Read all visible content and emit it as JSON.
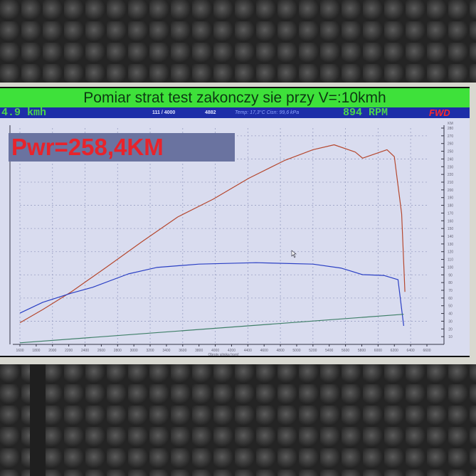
{
  "header": {
    "title": "Pomiar strat test zakonczy sie przy V=:10kmh",
    "speed": "4.9 kmh",
    "counter": "111 / 4000",
    "value": "4882",
    "conditions": "Temp: 17,3°C Cisn: 99,6 kPa",
    "rpm": "894 RPM",
    "drive": "FWD"
  },
  "result_label": "Pwr=258,4KM",
  "colors": {
    "title_bar": "#3ee13a",
    "status_bar": "#1d2ea8",
    "power": "#b5482f",
    "torque": "#2a3fc4",
    "loss": "#3f7f68",
    "result_text": "#e8232b"
  },
  "chart_data": {
    "type": "line",
    "xlabel": "Obroty silnika [rpm]",
    "right_axis_unit": "KM",
    "xlim": [
      1600,
      6600
    ],
    "x_ticks": [
      1600,
      1800,
      2000,
      2200,
      2400,
      2600,
      2800,
      3000,
      3200,
      3400,
      3600,
      3800,
      4000,
      4200,
      4400,
      4600,
      4800,
      5000,
      5200,
      5400,
      5600,
      5800,
      6000,
      6200,
      6400,
      6600
    ],
    "y_right_lim": [
      0,
      280
    ],
    "y_right_ticks": [
      10,
      20,
      30,
      40,
      50,
      60,
      70,
      80,
      90,
      100,
      110,
      120,
      130,
      140,
      150,
      160,
      170,
      180,
      190,
      200,
      210,
      220,
      230,
      240,
      250,
      260,
      270,
      280
    ],
    "y_left_lim": [
      0,
      900
    ],
    "grid": true,
    "series": [
      {
        "axis": "right",
        "color": "#b5482f",
        "x": [
          1600,
          1880,
          2230,
          2665,
          3100,
          3540,
          3975,
          4410,
          4850,
          5200,
          5460,
          5720,
          5810,
          6110,
          6200,
          6290,
          6330
        ],
        "y": [
          28,
          45,
          68,
          100,
          133,
          165,
          188,
          215,
          238,
          252,
          258.4,
          249,
          241,
          252,
          243,
          169,
          68
        ]
      },
      {
        "axis": "left",
        "color": "#2a3fc4",
        "x": [
          1600,
          1880,
          2230,
          2490,
          2930,
          3280,
          3800,
          4500,
          5200,
          5550,
          5810,
          6070,
          6245,
          6315
        ],
        "y": [
          130,
          175,
          213,
          237,
          293,
          320,
          334,
          340,
          334,
          317,
          290,
          287,
          269,
          77
        ]
      },
      {
        "axis": "right",
        "color": "#3f7f68",
        "x": [
          1600,
          6315
        ],
        "y": [
          2,
          39
        ]
      }
    ]
  }
}
